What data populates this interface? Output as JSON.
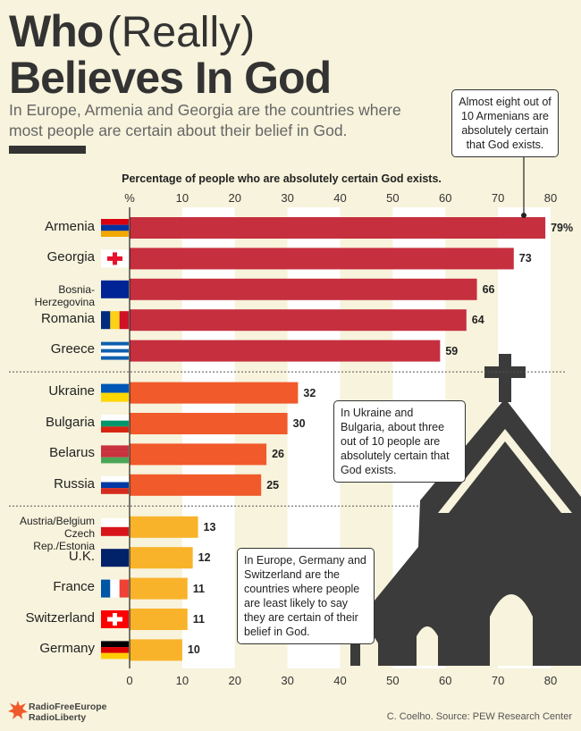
{
  "title": [
    "Who",
    "(Really)",
    "Believes In God"
  ],
  "subtitle": "In Europe, Armenia and Georgia are the countries where most people are certain about their belief in God.",
  "chart_data": {
    "type": "bar",
    "orientation": "horizontal",
    "x_label": "Percentage of people who are absolutely certain God exists.",
    "categories": [
      "Armenia",
      "Georgia",
      "Bosnia-Herzegovina",
      "Romania",
      "Greece",
      "Ukraine",
      "Bulgaria",
      "Belarus",
      "Russia",
      "Austria/Belgium\nCzech Rep./Estonia",
      "U.K.",
      "France",
      "Switzerland",
      "Germany"
    ],
    "values": [
      79,
      73,
      66,
      64,
      59,
      32,
      30,
      26,
      25,
      13,
      12,
      11,
      11,
      10
    ],
    "value_labels": [
      "79%",
      "73",
      "66",
      "64",
      "59",
      "32",
      "30",
      "26",
      "25",
      "13",
      "12",
      "11",
      "11",
      "10"
    ],
    "colors": [
      "#c62f3e",
      "#c62f3e",
      "#c62f3e",
      "#c62f3e",
      "#c62f3e",
      "#f15a2b",
      "#f15a2b",
      "#f15a2b",
      "#f15a2b",
      "#f9b32a",
      "#f9b32a",
      "#f9b32a",
      "#f9b32a",
      "#f9b32a"
    ],
    "xlim": [
      0,
      80
    ],
    "xticks": [
      0,
      10,
      20,
      30,
      40,
      50,
      60,
      70,
      80
    ],
    "xticks_top": [
      {
        "value": 0,
        "label": "%"
      },
      10,
      20,
      30,
      40,
      50,
      60,
      70,
      80
    ],
    "annotations": [
      "Almost eight out of 10 Armenians are absolutely certain that God exists.",
      "In Ukraine and Bulgaria, about three out of 10 people are absolutely certain that God exists.",
      "In Europe, Germany and Switzerland are the countries where people are least likely to say they are certain of their belief in God."
    ]
  },
  "logo": "RadioFreeEurope\nRadioLiberty",
  "source": "C. Coelho. Source: PEW Research Center"
}
